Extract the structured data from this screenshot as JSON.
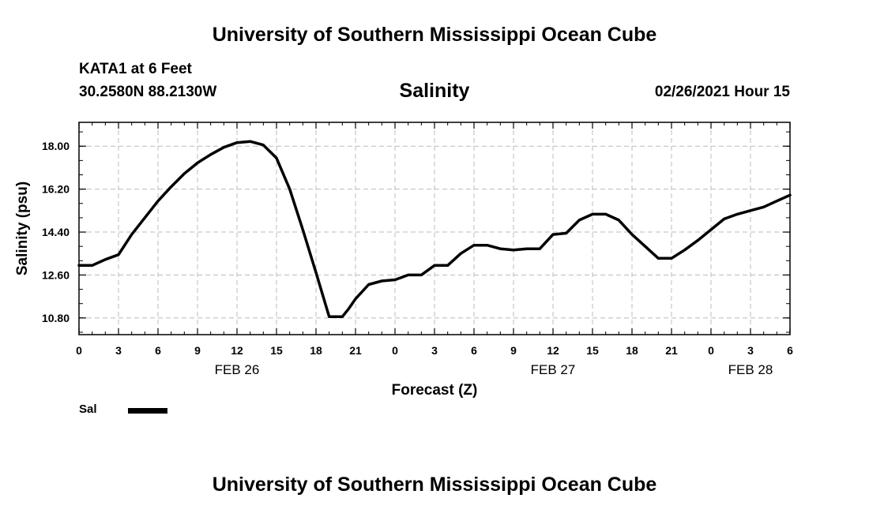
{
  "header": {
    "top_title": "University of Southern Mississippi Ocean Cube",
    "station": "KATA1 at 6 Feet",
    "coords": "30.2580N 88.2130W",
    "chart_title": "Salinity",
    "datetime": "02/26/2021 Hour 15"
  },
  "footer": {
    "bottom_title": "University of Southern Mississippi Ocean Cube"
  },
  "chart_data": {
    "type": "line",
    "title": "Salinity",
    "xlabel": "Forecast (Z)",
    "ylabel": "Salinity (psu)",
    "xlim": [
      0,
      54
    ],
    "ylim": [
      10.1,
      19.0
    ],
    "y_ticks": [
      10.8,
      12.6,
      14.4,
      16.2,
      18.0
    ],
    "y_tick_labels": [
      "10.80",
      "12.60",
      "14.40",
      "16.20",
      "18.00"
    ],
    "x_ticks": [
      0,
      3,
      6,
      9,
      12,
      15,
      18,
      21,
      24,
      27,
      30,
      33,
      36,
      39,
      42,
      45,
      48,
      51,
      54
    ],
    "x_tick_labels": [
      "0",
      "3",
      "6",
      "9",
      "12",
      "15",
      "18",
      "21",
      "0",
      "3",
      "6",
      "9",
      "12",
      "15",
      "18",
      "21",
      "0",
      "3",
      "6"
    ],
    "date_labels": [
      {
        "x": 12,
        "label": "FEB 26"
      },
      {
        "x": 36,
        "label": "FEB 27"
      },
      {
        "x": 51,
        "label": "FEB 28"
      }
    ],
    "grid": true,
    "series": [
      {
        "name": "Sal",
        "color": "#000000",
        "x": [
          0,
          1,
          2,
          3,
          4,
          5,
          6,
          7,
          8,
          9,
          10,
          11,
          12,
          13,
          14,
          15,
          16,
          17,
          18,
          19,
          20,
          20.5,
          21,
          22,
          23,
          24,
          25,
          26,
          27,
          28,
          29,
          30,
          31,
          32,
          33,
          34,
          35,
          36,
          37,
          38,
          39,
          40,
          41,
          42,
          43,
          44,
          45,
          46,
          47,
          48,
          49,
          50,
          51,
          52,
          53,
          54
        ],
        "values": [
          13.0,
          13.0,
          13.25,
          13.45,
          14.3,
          15.0,
          15.7,
          16.3,
          16.85,
          17.3,
          17.65,
          17.95,
          18.15,
          18.2,
          18.05,
          17.5,
          16.2,
          14.5,
          12.7,
          10.85,
          10.85,
          11.2,
          11.6,
          12.2,
          12.35,
          12.4,
          12.6,
          12.6,
          13.0,
          13.0,
          13.5,
          13.85,
          13.85,
          13.7,
          13.65,
          13.7,
          13.7,
          14.3,
          14.35,
          14.9,
          15.15,
          15.15,
          14.9,
          14.3,
          13.8,
          13.3,
          13.3,
          13.65,
          14.05,
          14.5,
          14.95,
          15.15,
          15.3,
          15.45,
          15.7,
          15.95
        ]
      }
    ],
    "legend": [
      {
        "label": "Sal",
        "position": "bottom-left"
      }
    ]
  },
  "colors": {
    "line": "#000000",
    "grid": "#bbbbbb",
    "background": "#ffffff"
  }
}
